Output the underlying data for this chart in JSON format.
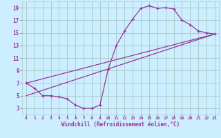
{
  "xlabel": "Windchill (Refroidissement éolien,°C)",
  "bg_color": "#cceeff",
  "grid_color": "#aacccc",
  "line_color": "#993399",
  "xlim": [
    -0.5,
    23.5
  ],
  "ylim": [
    2,
    20
  ],
  "xticks": [
    0,
    1,
    2,
    3,
    4,
    5,
    6,
    7,
    8,
    9,
    10,
    11,
    12,
    13,
    14,
    15,
    16,
    17,
    18,
    19,
    20,
    21,
    22,
    23
  ],
  "yticks": [
    3,
    5,
    7,
    9,
    11,
    13,
    15,
    17,
    19
  ],
  "curve1_x": [
    0,
    1,
    2,
    3,
    4,
    5,
    6,
    7,
    8,
    9,
    10,
    11,
    12,
    13,
    14,
    15,
    16,
    17,
    18,
    19,
    20,
    21,
    22,
    23
  ],
  "curve1_y": [
    7.0,
    6.2,
    5.0,
    5.0,
    4.8,
    4.5,
    3.5,
    3.0,
    3.0,
    3.5,
    9.2,
    13.0,
    15.3,
    17.2,
    18.9,
    19.3,
    18.9,
    19.0,
    18.8,
    17.0,
    16.3,
    15.3,
    15.0,
    14.8
  ],
  "curve2_x": [
    0,
    23
  ],
  "curve2_y": [
    7.0,
    14.8
  ],
  "curve3_x": [
    0,
    23
  ],
  "curve3_y": [
    5.0,
    14.8
  ]
}
